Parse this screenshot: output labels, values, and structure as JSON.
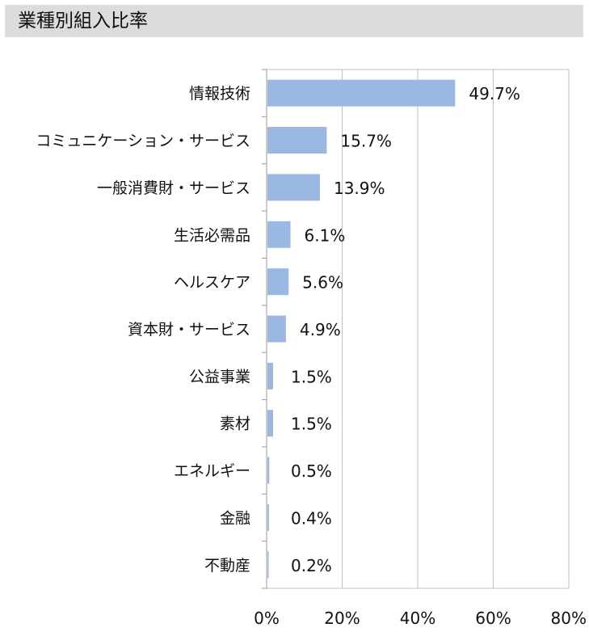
{
  "header": {
    "title": "業種別組入比率"
  },
  "chart_data": {
    "type": "bar",
    "orientation": "horizontal",
    "title": "業種別組入比率",
    "categories": [
      "情報技術",
      "コミュニケーション・サービス",
      "一般消費財・サービス",
      "生活必需品",
      "ヘルスケア",
      "資本財・サービス",
      "公益事業",
      "素材",
      "エネルギー",
      "金融",
      "不動産"
    ],
    "values": [
      49.7,
      15.7,
      13.9,
      6.1,
      5.6,
      4.9,
      1.5,
      1.5,
      0.5,
      0.4,
      0.2
    ],
    "value_labels": [
      "49.7%",
      "15.7%",
      "13.9%",
      "6.1%",
      "5.6%",
      "4.9%",
      "1.5%",
      "1.5%",
      "0.5%",
      "0.4%",
      "0.2%"
    ],
    "xlim": [
      0,
      80
    ],
    "xticks": [
      0,
      20,
      40,
      60,
      80
    ],
    "xtick_labels": [
      "0%",
      "20%",
      "40%",
      "60%",
      "80%"
    ],
    "grid": true,
    "bar_color": "#9ab8e2",
    "grid_color": "#c0c0c0"
  }
}
